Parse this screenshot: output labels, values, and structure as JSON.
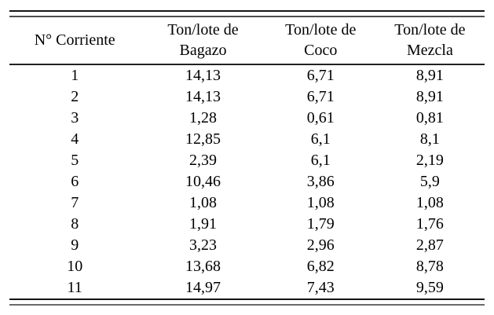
{
  "chart_data": {
    "type": "table",
    "columns": [
      {
        "line1": "N° Corriente",
        "line2": ""
      },
      {
        "line1": "Ton/lote de",
        "line2": "Bagazo"
      },
      {
        "line1": "Ton/lote de",
        "line2": "Coco"
      },
      {
        "line1": "Ton/lote de",
        "line2": "Mezcla"
      }
    ],
    "rows": [
      [
        "1",
        "14,13",
        "6,71",
        "8,91"
      ],
      [
        "2",
        "14,13",
        "6,71",
        "8,91"
      ],
      [
        "3",
        "1,28",
        "0,61",
        "0,81"
      ],
      [
        "4",
        "12,85",
        "6,1",
        "8,1"
      ],
      [
        "5",
        "2,39",
        "6,1",
        "2,19"
      ],
      [
        "6",
        "10,46",
        "3,86",
        "5,9"
      ],
      [
        "7",
        "1,08",
        "1,08",
        "1,08"
      ],
      [
        "8",
        "1,91",
        "1,79",
        "1,76"
      ],
      [
        "9",
        "3,23",
        "2,96",
        "2,87"
      ],
      [
        "10",
        "13,68",
        "6,82",
        "8,78"
      ],
      [
        "11",
        "14,97",
        "7,43",
        "9,59"
      ]
    ]
  }
}
